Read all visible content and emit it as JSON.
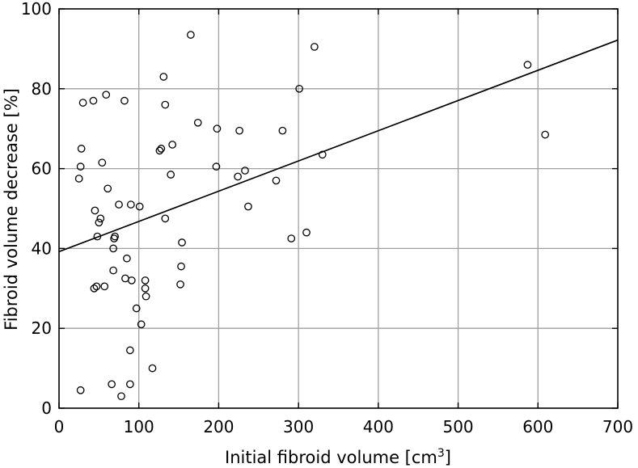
{
  "chart_data": {
    "type": "scatter",
    "xlabel": "Initial fibroid volume [cm",
    "xlabel_superscript": "3",
    "xlabel_suffix": "]",
    "ylabel": "Fibroid volume decrease [%]",
    "xlim": [
      0,
      700
    ],
    "ylim": [
      0,
      100
    ],
    "xticks": [
      0,
      100,
      200,
      300,
      400,
      500,
      600,
      700
    ],
    "yticks": [
      0,
      20,
      40,
      60,
      80,
      100
    ],
    "grid": true,
    "legend": "none",
    "series": [
      {
        "marker": "open-circle",
        "points": [
          [
            27,
            4.5
          ],
          [
            25,
            57.5
          ],
          [
            27,
            60.5
          ],
          [
            28,
            65
          ],
          [
            30,
            76.5
          ],
          [
            43,
            77
          ],
          [
            44,
            30
          ],
          [
            45,
            49.5
          ],
          [
            47,
            30.5
          ],
          [
            48,
            43
          ],
          [
            50,
            46.5
          ],
          [
            52,
            47.5
          ],
          [
            54,
            61.5
          ],
          [
            57,
            30.5
          ],
          [
            59,
            78.5
          ],
          [
            61,
            55
          ],
          [
            66,
            6
          ],
          [
            68,
            34.5
          ],
          [
            68,
            40
          ],
          [
            69,
            42.5
          ],
          [
            70,
            43
          ],
          [
            75,
            51
          ],
          [
            78,
            3
          ],
          [
            82,
            77
          ],
          [
            83,
            32.5
          ],
          [
            85,
            37.5
          ],
          [
            89,
            6
          ],
          [
            89,
            14.5
          ],
          [
            90,
            51
          ],
          [
            91,
            32
          ],
          [
            97,
            25
          ],
          [
            101,
            50.5
          ],
          [
            103,
            21
          ],
          [
            108,
            32
          ],
          [
            108,
            30
          ],
          [
            109,
            28
          ],
          [
            117,
            10
          ],
          [
            126,
            64.5
          ],
          [
            128,
            65
          ],
          [
            131,
            83
          ],
          [
            133,
            76
          ],
          [
            133,
            47.5
          ],
          [
            140,
            58.5
          ],
          [
            142,
            66
          ],
          [
            152,
            31
          ],
          [
            153,
            35.5
          ],
          [
            154,
            41.5
          ],
          [
            165,
            93.5
          ],
          [
            174,
            71.5
          ],
          [
            197,
            60.5
          ],
          [
            198,
            70
          ],
          [
            224,
            58
          ],
          [
            226,
            69.5
          ],
          [
            233,
            59.5
          ],
          [
            237,
            50.5
          ],
          [
            272,
            57
          ],
          [
            280,
            69.5
          ],
          [
            291,
            42.5
          ],
          [
            301,
            80
          ],
          [
            310,
            44
          ],
          [
            320,
            90.5
          ],
          [
            330,
            63.5
          ],
          [
            587,
            86
          ],
          [
            609,
            68.5
          ]
        ]
      }
    ],
    "trendline": {
      "type": "linear",
      "from": [
        0,
        39.2
      ],
      "to": [
        700,
        92.2
      ]
    }
  }
}
